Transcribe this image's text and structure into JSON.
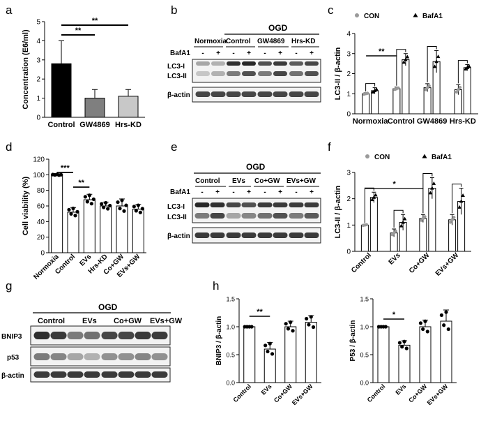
{
  "panel_labels": [
    "a",
    "b",
    "c",
    "d",
    "e",
    "f",
    "g",
    "h"
  ],
  "colors": {
    "black": "#000000",
    "dark_gray": "#7f7f7f",
    "light_gray": "#c8c8c8",
    "white": "#ffffff",
    "dot_gray": "#9a9a9a"
  },
  "chart_data": [
    {
      "id": "a",
      "type": "bar",
      "ylabel": "Concentration (E6/ml)",
      "ylim": [
        0,
        5
      ],
      "yticks": [
        0,
        1,
        2,
        3,
        4,
        5
      ],
      "categories": [
        "Control",
        "GW4869",
        "Hrs-KD"
      ],
      "values": [
        2.8,
        1.0,
        1.1
      ],
      "errors": [
        1.2,
        0.45,
        0.35
      ],
      "bar_colors": [
        "#000000",
        "#7f7f7f",
        "#c8c8c8"
      ],
      "significance": [
        "**",
        "**"
      ]
    },
    {
      "id": "c",
      "type": "bar",
      "ylabel": "LC3-II / β-actin",
      "ylim": [
        0,
        4
      ],
      "yticks": [
        0,
        1,
        2,
        3,
        4
      ],
      "legend": [
        "CON",
        "BafA1"
      ],
      "categories": [
        "Normoxia",
        "Control",
        "GW4869",
        "Hrs-KD"
      ],
      "series": [
        {
          "name": "CON",
          "values": [
            1.0,
            1.25,
            1.3,
            1.2
          ],
          "errors": [
            0.05,
            0.08,
            0.2,
            0.25
          ]
        },
        {
          "name": "BafA1",
          "values": [
            1.15,
            2.7,
            2.6,
            2.3
          ],
          "errors": [
            0.15,
            0.3,
            0.55,
            0.15
          ]
        }
      ],
      "significance": [
        "**"
      ]
    },
    {
      "id": "d",
      "type": "bar",
      "ylabel": "Cell viability (%)",
      "ylim": [
        0,
        120
      ],
      "yticks": [
        0,
        20,
        40,
        60,
        80,
        100,
        120
      ],
      "categories": [
        "Normoxia",
        "Control",
        "EVs",
        "Hrs-KD",
        "Co+GW",
        "EVs+GW"
      ],
      "values": [
        100,
        52,
        68,
        60,
        60,
        56
      ],
      "errors": [
        0.5,
        6,
        7,
        5,
        9,
        6
      ],
      "significance": [
        "***",
        "**"
      ]
    },
    {
      "id": "f",
      "type": "bar",
      "ylabel": "LC3-II / β-actin",
      "ylim": [
        0,
        3
      ],
      "yticks": [
        0,
        1,
        2,
        3
      ],
      "legend": [
        "CON",
        "BafA1"
      ],
      "categories": [
        "Control",
        "EVs",
        "Co+GW",
        "EVs+GW"
      ],
      "series": [
        {
          "name": "CON",
          "values": [
            1.0,
            0.7,
            1.25,
            1.2
          ],
          "errors": [
            0.03,
            0.15,
            0.15,
            0.2
          ]
        },
        {
          "name": "BafA1",
          "values": [
            2.05,
            1.1,
            2.4,
            1.9
          ],
          "errors": [
            0.2,
            0.3,
            0.4,
            0.5
          ]
        }
      ],
      "significance": [
        "*"
      ]
    },
    {
      "id": "h1",
      "type": "bar",
      "ylabel": "BNIP3 / β-actin",
      "ylim": [
        0,
        1.5
      ],
      "yticks": [
        "0.0",
        "0.5",
        "1.0",
        "1.5"
      ],
      "categories": [
        "Control",
        "EVs",
        "Co+GW",
        "EVs+GW"
      ],
      "values": [
        1.0,
        0.6,
        1.0,
        1.08
      ],
      "errors": [
        0.0,
        0.12,
        0.1,
        0.12
      ],
      "significance": [
        "**"
      ]
    },
    {
      "id": "h2",
      "type": "bar",
      "ylabel": "P53 / β-actin",
      "ylim": [
        0,
        1.5
      ],
      "yticks": [
        "0.0",
        "0.5",
        "1.0",
        "1.5"
      ],
      "categories": [
        "Control",
        "EVs",
        "Co+GW",
        "EVs+GW"
      ],
      "values": [
        1.0,
        0.67,
        1.0,
        1.1
      ],
      "errors": [
        0.0,
        0.08,
        0.12,
        0.2
      ],
      "significance": [
        "*"
      ]
    }
  ],
  "blots": {
    "b": {
      "header": "OGD",
      "groups": [
        "Normoxia",
        "Control",
        "GW4869",
        "Hrs-KD"
      ],
      "treatment_label": "BafA1",
      "signs": [
        "-",
        "+",
        "-",
        "+",
        "-",
        "+",
        "-",
        "+"
      ],
      "rows": [
        "LC3-I",
        "LC3-II",
        "β-actin"
      ]
    },
    "e": {
      "header": "OGD",
      "groups": [
        "Control",
        "EVs",
        "Co+GW",
        "EVs+GW"
      ],
      "treatment_label": "BafA1",
      "signs": [
        "-",
        "+",
        "-",
        "+",
        "-",
        "+",
        "-",
        "+"
      ],
      "rows": [
        "LC3-I",
        "LC3-II",
        "β-actin"
      ]
    },
    "g": {
      "header": "OGD",
      "groups": [
        "Control",
        "EVs",
        "Co+GW",
        "EVs+GW"
      ],
      "rows": [
        "BNIP3",
        "p53",
        "β-actin"
      ]
    }
  }
}
